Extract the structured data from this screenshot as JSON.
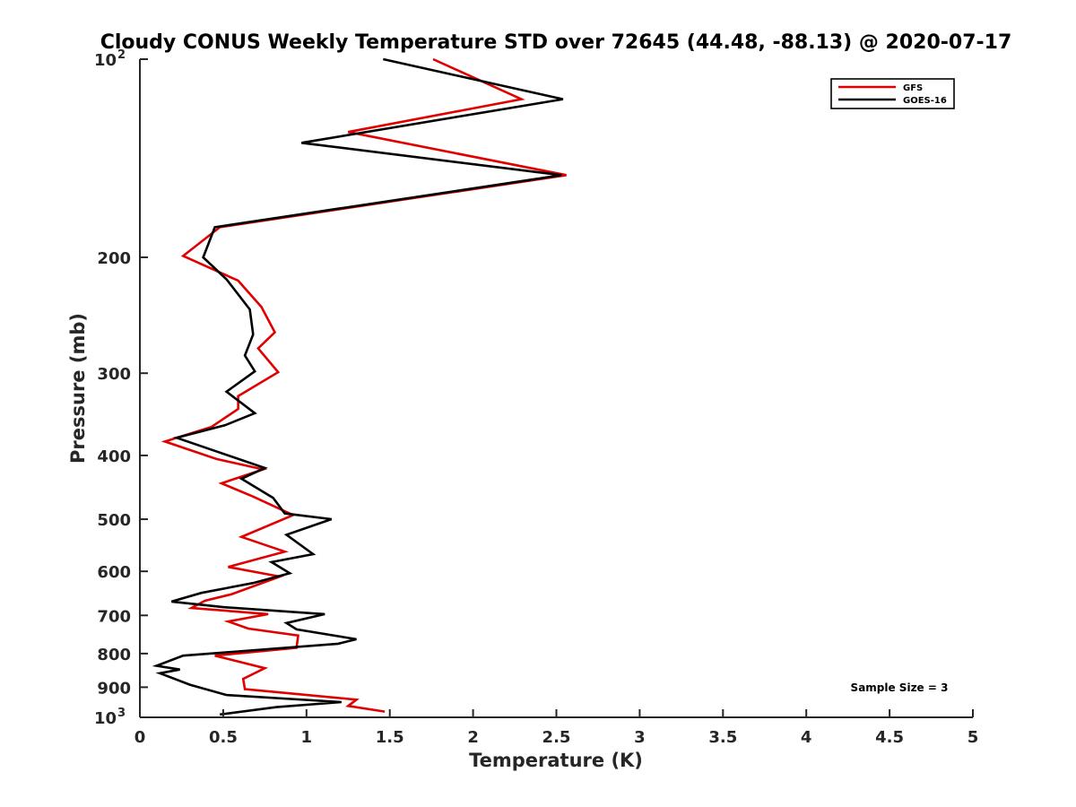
{
  "chart_data": {
    "type": "line",
    "title": "Cloudy CONUS Weekly Temperature STD over 72645 (44.48, -88.13) @ 2020-07-17",
    "xlabel": "Temperature (K)",
    "ylabel": "Pressure (mb)",
    "xlim": [
      0,
      5
    ],
    "ylim": [
      1000,
      100
    ],
    "yscale": "log",
    "y_reversed": true,
    "grid": false,
    "legend_position": "top-right",
    "x_ticks": [
      "0",
      "0.5",
      "1",
      "1.5",
      "2",
      "2.5",
      "3",
      "3.5",
      "4",
      "4.5",
      "5"
    ],
    "y_ticks": [
      {
        "value": 100,
        "base": "10",
        "exp": "2"
      },
      {
        "value": 200,
        "label": "200"
      },
      {
        "value": 300,
        "label": "300"
      },
      {
        "value": 400,
        "label": "400"
      },
      {
        "value": 500,
        "label": "500"
      },
      {
        "value": 600,
        "label": "600"
      },
      {
        "value": 700,
        "label": "700"
      },
      {
        "value": 800,
        "label": "800"
      },
      {
        "value": 900,
        "label": "900"
      },
      {
        "value": 1000,
        "base": "10",
        "exp": "3"
      }
    ],
    "annotation": "Sample Size = 3",
    "series": [
      {
        "name": "GFS",
        "color": "#e00000",
        "points": [
          [
            1.76,
            100
          ],
          [
            2.29,
            115
          ],
          [
            1.25,
            129
          ],
          [
            2.56,
            150
          ],
          [
            0.48,
            180
          ],
          [
            0.26,
            199
          ],
          [
            0.59,
            217
          ],
          [
            0.73,
            238
          ],
          [
            0.81,
            260
          ],
          [
            0.71,
            275
          ],
          [
            0.83,
            299
          ],
          [
            0.59,
            325
          ],
          [
            0.59,
            340
          ],
          [
            0.43,
            362
          ],
          [
            0.15,
            381
          ],
          [
            0.46,
            405
          ],
          [
            0.74,
            420
          ],
          [
            0.49,
            441
          ],
          [
            0.68,
            462
          ],
          [
            0.92,
            493
          ],
          [
            0.61,
            532
          ],
          [
            0.87,
            560
          ],
          [
            0.53,
            591
          ],
          [
            0.84,
            611
          ],
          [
            0.55,
            650
          ],
          [
            0.39,
            665
          ],
          [
            0.31,
            682
          ],
          [
            0.77,
            697
          ],
          [
            0.53,
            715
          ],
          [
            0.65,
            733
          ],
          [
            0.95,
            751
          ],
          [
            0.94,
            784
          ],
          [
            0.45,
            806
          ],
          [
            0.75,
            842
          ],
          [
            0.62,
            874
          ],
          [
            0.63,
            906
          ],
          [
            1.3,
            940
          ],
          [
            1.25,
            961
          ],
          [
            1.47,
            980
          ]
        ]
      },
      {
        "name": "GOES-16",
        "color": "#000000",
        "points": [
          [
            1.46,
            100
          ],
          [
            2.54,
            115
          ],
          [
            0.97,
            134
          ],
          [
            2.53,
            150
          ],
          [
            0.45,
            180
          ],
          [
            0.38,
            200
          ],
          [
            0.52,
            216
          ],
          [
            0.66,
            240
          ],
          [
            0.68,
            262
          ],
          [
            0.63,
            282
          ],
          [
            0.69,
            298
          ],
          [
            0.52,
            320
          ],
          [
            0.69,
            345
          ],
          [
            0.51,
            360
          ],
          [
            0.22,
            376
          ],
          [
            0.75,
            418
          ],
          [
            0.61,
            434
          ],
          [
            0.8,
            464
          ],
          [
            0.87,
            490
          ],
          [
            1.15,
            500
          ],
          [
            0.88,
            528
          ],
          [
            1.04,
            565
          ],
          [
            0.79,
            581
          ],
          [
            0.9,
            604
          ],
          [
            0.68,
            625
          ],
          [
            0.37,
            647
          ],
          [
            0.19,
            667
          ],
          [
            0.5,
            680
          ],
          [
            1.11,
            697
          ],
          [
            0.88,
            719
          ],
          [
            0.94,
            735
          ],
          [
            1.3,
            761
          ],
          [
            1.19,
            773
          ],
          [
            0.26,
            806
          ],
          [
            0.1,
            835
          ],
          [
            0.24,
            846
          ],
          [
            0.12,
            857
          ],
          [
            0.3,
            892
          ],
          [
            0.52,
            925
          ],
          [
            1.21,
            948
          ],
          [
            0.82,
            965
          ],
          [
            0.48,
            990
          ]
        ]
      }
    ]
  }
}
